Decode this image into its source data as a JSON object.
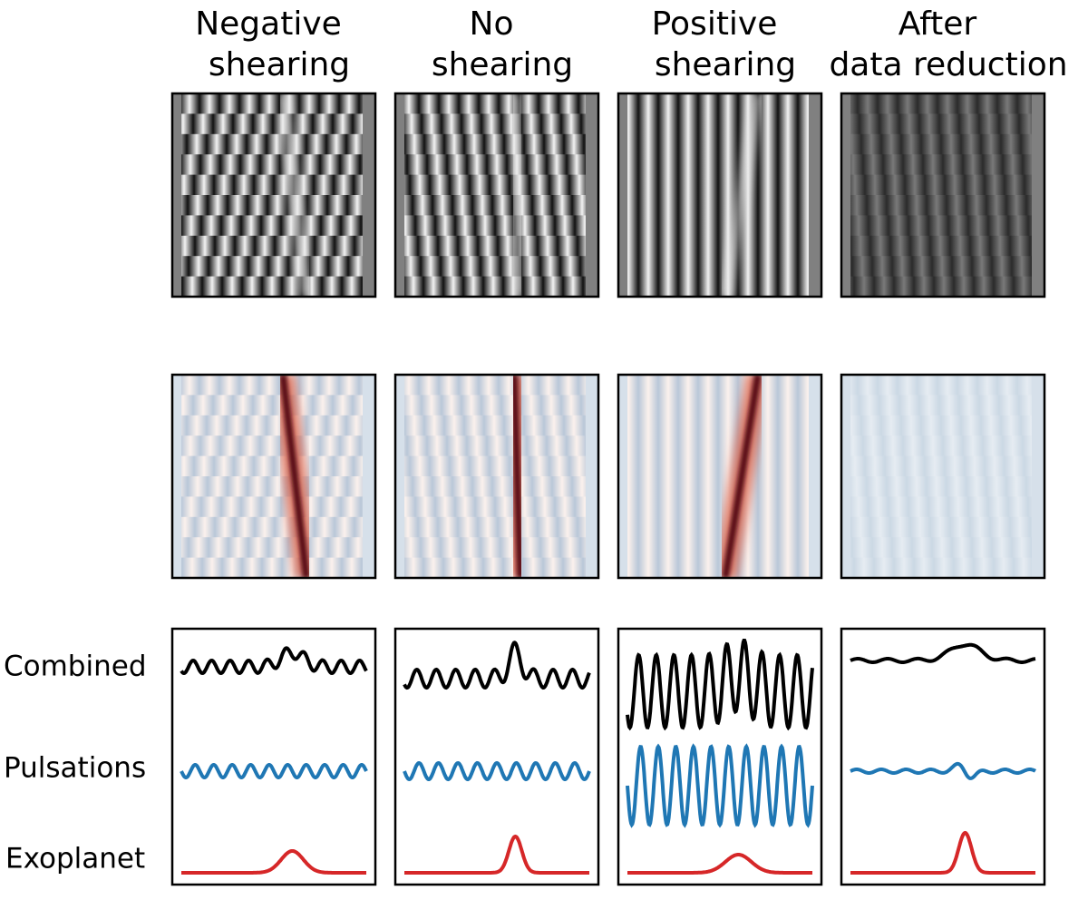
{
  "columns": [
    {
      "line1": "Negative",
      "line2": "shearing"
    },
    {
      "line1": "No",
      "line2": "shearing"
    },
    {
      "line1": "Positive",
      "line2": "shearing"
    },
    {
      "line1": "After",
      "line2": "data reduction"
    }
  ],
  "row_labels": [
    "Combined",
    "Pulsations",
    "Exoplanet"
  ]
}
